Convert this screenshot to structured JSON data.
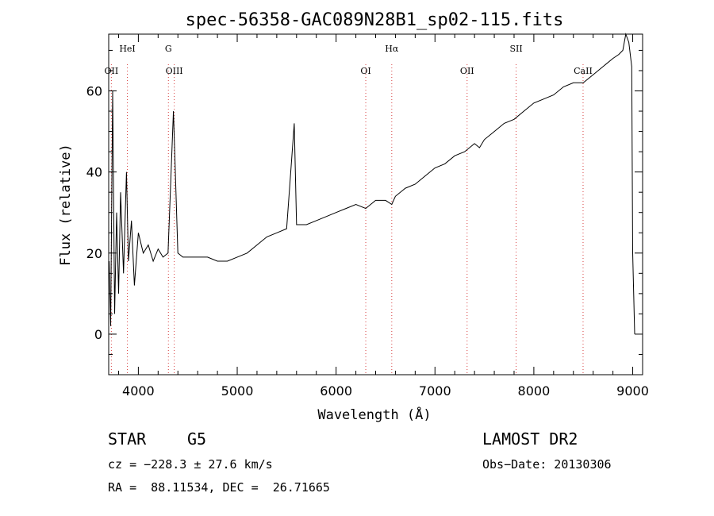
{
  "chart_data": {
    "type": "line",
    "title": "spec-56358-GAC089N28B1_sp02-115.fits",
    "xlabel": "Wavelength (Å)",
    "ylabel": "Flux (relative)",
    "xlim": [
      3700,
      9100
    ],
    "ylim": [
      -10,
      74
    ],
    "x_ticks": [
      4000,
      5000,
      6000,
      7000,
      8000,
      9000
    ],
    "y_ticks": [
      0,
      20,
      40,
      60
    ],
    "grid": false,
    "series": [
      {
        "x": [
          3705,
          3720,
          3740,
          3760,
          3780,
          3800,
          3820,
          3850,
          3880,
          3900,
          3930,
          3960,
          4000,
          4050,
          4100,
          4150,
          4200,
          4250,
          4300,
          4355,
          4400,
          4450,
          4500,
          4600,
          4700,
          4800,
          4900,
          5000,
          5100,
          5200,
          5300,
          5400,
          5500,
          5577,
          5600,
          5700,
          5800,
          5900,
          6000,
          6100,
          6200,
          6300,
          6400,
          6500,
          6563,
          6600,
          6700,
          6800,
          6900,
          7000,
          7100,
          7200,
          7300,
          7400,
          7450,
          7500,
          7600,
          7700,
          7800,
          7900,
          8000,
          8100,
          8200,
          8300,
          8400,
          8500,
          8600,
          8700,
          8800,
          8860,
          8900,
          8930,
          8960,
          8990,
          9000,
          9020
        ],
        "y": [
          18,
          2,
          60,
          5,
          30,
          10,
          35,
          15,
          40,
          18,
          28,
          12,
          25,
          20,
          22,
          18,
          21,
          19,
          20,
          55,
          20,
          19,
          19,
          19,
          19,
          18,
          18,
          19,
          20,
          22,
          24,
          25,
          26,
          52,
          27,
          27,
          28,
          29,
          30,
          31,
          32,
          31,
          33,
          33,
          32,
          34,
          36,
          37,
          39,
          41,
          42,
          44,
          45,
          47,
          46,
          48,
          50,
          52,
          53,
          55,
          57,
          58,
          59,
          61,
          62,
          62,
          64,
          66,
          68,
          69,
          70,
          74,
          72,
          66,
          20,
          0
        ]
      }
    ],
    "spectral_lines": [
      {
        "label": "OII",
        "wavelength": 3727
      },
      {
        "label": "HeI",
        "wavelength": 3889
      },
      {
        "label": "OIII",
        "wavelength": 4363
      },
      {
        "label": "G",
        "wavelength": 4304
      },
      {
        "label": "OI",
        "wavelength": 6300
      },
      {
        "label": "Hα",
        "wavelength": 6563
      },
      {
        "label": "OII",
        "wavelength": 7325
      },
      {
        "label": "SII",
        "wavelength": 7821
      },
      {
        "label": "CaII",
        "wavelength": 8498
      }
    ]
  },
  "info": {
    "object_class": "STAR",
    "subclass": "G5",
    "survey": "LAMOST DR2",
    "cz": "cz = −228.3 ± 27.6 km/s",
    "obs_date": "Obs−Date: 20130306",
    "coords": "RA =  88.11534, DEC =  26.71665"
  },
  "colors": {
    "line": "#000000",
    "marker_line": "#d84040"
  }
}
